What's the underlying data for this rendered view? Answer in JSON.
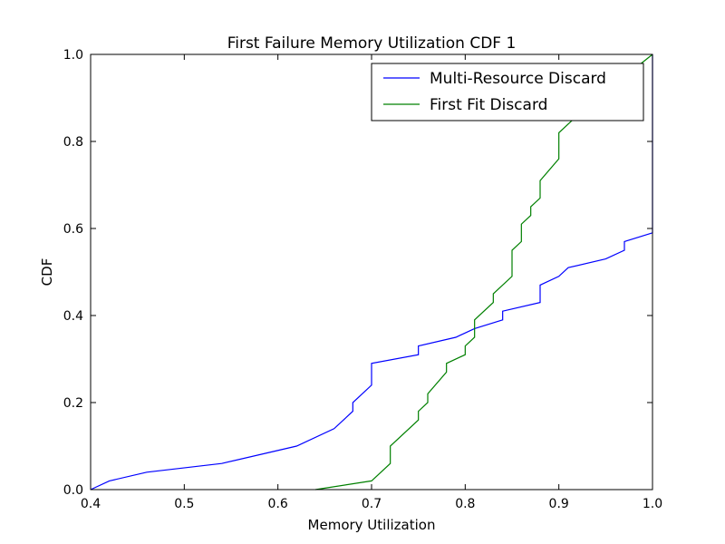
{
  "chart_data": {
    "type": "line",
    "title": "First Failure Memory Utilization CDF 1",
    "xlabel": "Memory Utilization",
    "ylabel": "CDF",
    "xlim": [
      0.4,
      1.0
    ],
    "ylim": [
      0.0,
      1.0
    ],
    "xticks": [
      "0.4",
      "0.5",
      "0.6",
      "0.7",
      "0.8",
      "0.9",
      "1.0"
    ],
    "yticks": [
      "0.0",
      "0.2",
      "0.4",
      "0.6",
      "0.8",
      "1.0"
    ],
    "grid": false,
    "legend_position": "upper right",
    "series": [
      {
        "name": "Multi-Resource Discard",
        "color": "#0000ff",
        "x": [
          0.4,
          0.42,
          0.46,
          0.54,
          0.62,
          0.66,
          0.68,
          0.68,
          0.7,
          0.7,
          0.75,
          0.75,
          0.79,
          0.81,
          0.84,
          0.84,
          0.88,
          0.88,
          0.9,
          0.91,
          0.95,
          0.97,
          0.97,
          1.0,
          1.0
        ],
        "y": [
          0.0,
          0.02,
          0.04,
          0.06,
          0.1,
          0.14,
          0.18,
          0.2,
          0.24,
          0.29,
          0.31,
          0.33,
          0.35,
          0.37,
          0.39,
          0.41,
          0.43,
          0.47,
          0.49,
          0.51,
          0.53,
          0.55,
          0.57,
          0.59,
          1.0
        ]
      },
      {
        "name": "First Fit Discard",
        "color": "#008000",
        "x": [
          0.64,
          0.7,
          0.72,
          0.72,
          0.75,
          0.75,
          0.76,
          0.76,
          0.78,
          0.78,
          0.8,
          0.8,
          0.81,
          0.81,
          0.83,
          0.83,
          0.85,
          0.85,
          0.86,
          0.86,
          0.87,
          0.87,
          0.88,
          0.88,
          0.9,
          0.9,
          0.93,
          1.0
        ],
        "y": [
          0.0,
          0.02,
          0.06,
          0.1,
          0.16,
          0.18,
          0.2,
          0.22,
          0.27,
          0.29,
          0.31,
          0.33,
          0.35,
          0.39,
          0.43,
          0.45,
          0.49,
          0.55,
          0.57,
          0.61,
          0.63,
          0.65,
          0.67,
          0.71,
          0.76,
          0.82,
          0.88,
          1.0
        ]
      }
    ]
  }
}
